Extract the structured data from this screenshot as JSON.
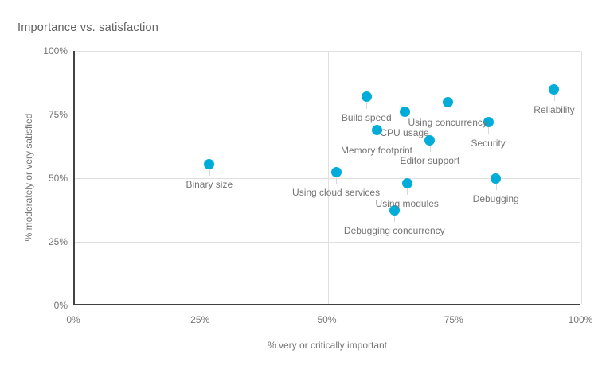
{
  "chart_data": {
    "type": "scatter",
    "title": "Importance vs. satisfaction",
    "xlabel": "% very or critically important",
    "ylabel": "% moderately or very satisfied",
    "xlim": [
      0,
      100
    ],
    "ylim": [
      0,
      100
    ],
    "x_ticks": [
      0,
      25,
      50,
      75,
      100
    ],
    "y_ticks": [
      0,
      25,
      50,
      75,
      100
    ],
    "tick_format": "percent",
    "grid": true,
    "legend": false,
    "point_color": "#00ADD8",
    "points": [
      {
        "label": "Binary size",
        "x": 26.5,
        "y": 55.5
      },
      {
        "label": "Using cloud services",
        "x": 51.5,
        "y": 52.5
      },
      {
        "label": "Build speed",
        "x": 57.5,
        "y": 82
      },
      {
        "label": "Memory footprint",
        "x": 59.5,
        "y": 69
      },
      {
        "label": "Debugging concurrency",
        "x": 63,
        "y": 37.5
      },
      {
        "label": "CPU usage",
        "x": 65,
        "y": 76
      },
      {
        "label": "Using modules",
        "x": 65.5,
        "y": 48
      },
      {
        "label": "Editor support",
        "x": 70,
        "y": 65
      },
      {
        "label": "Using concurrency",
        "x": 73.5,
        "y": 80
      },
      {
        "label": "Security",
        "x": 81.5,
        "y": 72
      },
      {
        "label": "Debugging",
        "x": 83,
        "y": 50
      },
      {
        "label": "Reliability",
        "x": 94.5,
        "y": 85
      }
    ]
  }
}
